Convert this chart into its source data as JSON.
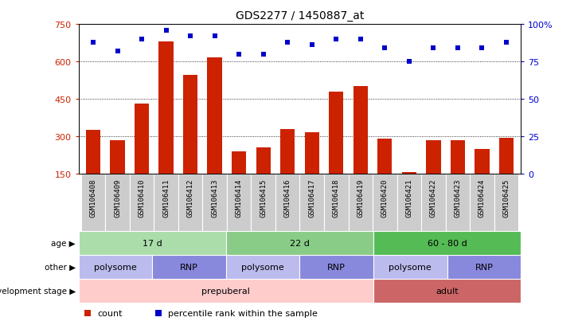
{
  "title": "GDS2277 / 1450887_at",
  "samples": [
    "GSM106408",
    "GSM106409",
    "GSM106410",
    "GSM106411",
    "GSM106412",
    "GSM106413",
    "GSM106414",
    "GSM106415",
    "GSM106416",
    "GSM106417",
    "GSM106418",
    "GSM106419",
    "GSM106420",
    "GSM106421",
    "GSM106422",
    "GSM106423",
    "GSM106424",
    "GSM106425"
  ],
  "counts": [
    325,
    285,
    430,
    680,
    545,
    615,
    240,
    255,
    330,
    315,
    480,
    500,
    290,
    155,
    285,
    285,
    250,
    295
  ],
  "percentile_ranks": [
    88,
    82,
    90,
    96,
    92,
    92,
    80,
    80,
    88,
    86,
    90,
    90,
    84,
    75,
    84,
    84,
    84,
    88
  ],
  "ylim_left": [
    150,
    750
  ],
  "ylim_right": [
    0,
    100
  ],
  "yticks_left": [
    150,
    300,
    450,
    600,
    750
  ],
  "yticks_right": [
    0,
    25,
    50,
    75,
    100
  ],
  "bar_color": "#cc2200",
  "dot_color": "#0000cc",
  "grid_lines": [
    300,
    450,
    600
  ],
  "age_groups": [
    {
      "label": "17 d",
      "start": 0,
      "end": 6,
      "color": "#aaddaa"
    },
    {
      "label": "22 d",
      "start": 6,
      "end": 12,
      "color": "#88cc88"
    },
    {
      "label": "60 - 80 d",
      "start": 12,
      "end": 18,
      "color": "#55bb55"
    }
  ],
  "other_groups": [
    {
      "label": "polysome",
      "start": 0,
      "end": 3,
      "color": "#bbbbee"
    },
    {
      "label": "RNP",
      "start": 3,
      "end": 6,
      "color": "#8888dd"
    },
    {
      "label": "polysome",
      "start": 6,
      "end": 9,
      "color": "#bbbbee"
    },
    {
      "label": "RNP",
      "start": 9,
      "end": 12,
      "color": "#8888dd"
    },
    {
      "label": "polysome",
      "start": 12,
      "end": 15,
      "color": "#bbbbee"
    },
    {
      "label": "RNP",
      "start": 15,
      "end": 18,
      "color": "#8888dd"
    }
  ],
  "dev_groups": [
    {
      "label": "prepuberal",
      "start": 0,
      "end": 12,
      "color": "#ffcccc"
    },
    {
      "label": "adult",
      "start": 12,
      "end": 18,
      "color": "#cc6666"
    }
  ],
  "row_labels": [
    "age",
    "other",
    "development stage"
  ],
  "legend_items": [
    {
      "color": "#cc2200",
      "label": "count"
    },
    {
      "color": "#0000cc",
      "label": "percentile rank within the sample"
    }
  ],
  "bg_color": "#ffffff",
  "tick_label_bg": "#cccccc"
}
